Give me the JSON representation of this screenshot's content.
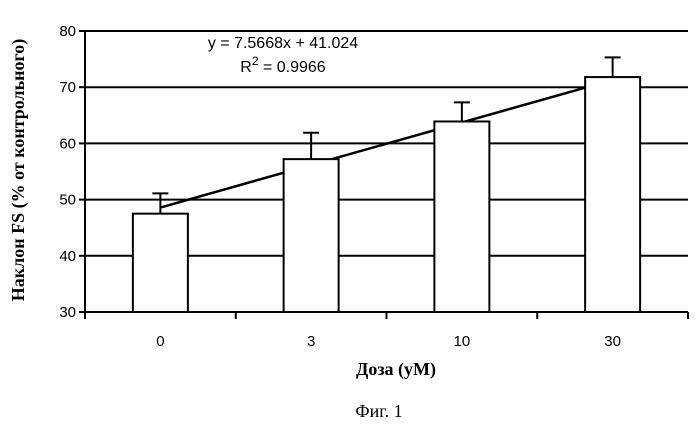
{
  "chart_data": {
    "type": "bar",
    "categories": [
      "0",
      "3",
      "10",
      "30"
    ],
    "values": [
      47.5,
      57.2,
      63.9,
      71.8
    ],
    "error_plus": [
      3.6,
      4.7,
      3.4,
      3.5
    ],
    "ylim": [
      30,
      80
    ],
    "yticks": [
      "30",
      "40",
      "50",
      "60",
      "70",
      "80"
    ],
    "xlabel": "Доза (уМ)",
    "ylabel": "Наклон FS (% от контрольного)",
    "grid": true,
    "trendline": {
      "type": "linear",
      "slope": 7.5668,
      "intercept": 41.024,
      "equation": "y = 7.5668x + 41.024",
      "r2_prefix": "R",
      "r2_exp": "2",
      "r2_suffix": " = 0.9966"
    }
  },
  "caption": "Фиг. 1"
}
